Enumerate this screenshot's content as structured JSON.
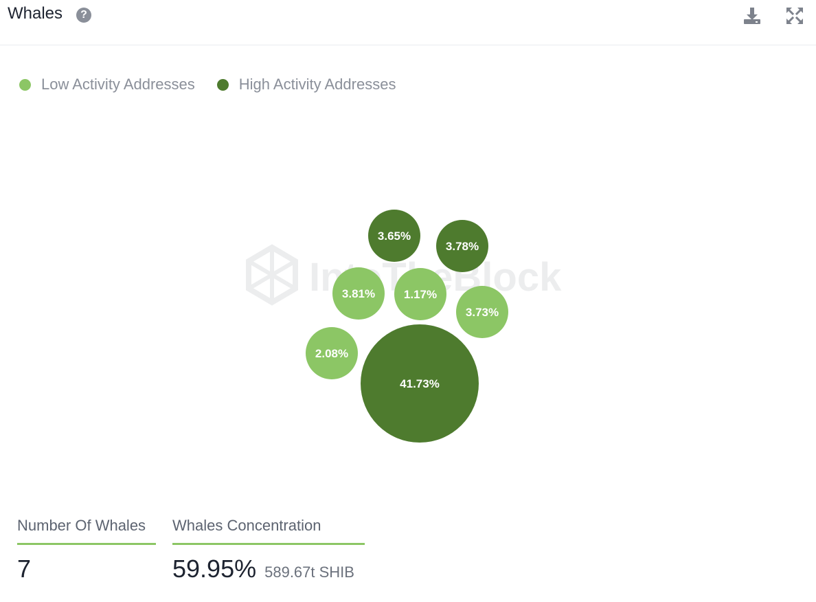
{
  "header": {
    "title": "Whales",
    "help_icon": "question-circle-icon",
    "download_icon": "download-icon",
    "expand_icon": "expand-icon"
  },
  "colors": {
    "low_activity": "#8cc665",
    "high_activity": "#4e7b2e"
  },
  "legend": [
    {
      "label": "Low Activity Addresses",
      "color": "#8cc665"
    },
    {
      "label": "High Activity Addresses",
      "color": "#4e7b2e"
    }
  ],
  "chart_data": {
    "type": "bubble",
    "title": "",
    "series": [
      {
        "name": "Low Activity Addresses",
        "values": [
          3.81,
          1.17,
          3.73,
          2.08
        ]
      },
      {
        "name": "High Activity Addresses",
        "values": [
          3.65,
          3.78,
          41.73
        ]
      }
    ],
    "labels": [
      "3.81%",
      "1.17%",
      "3.73%",
      "2.08%",
      "3.65%",
      "3.78%",
      "41.73%"
    ]
  },
  "stats": {
    "number_of_whales_label": "Number Of Whales",
    "number_of_whales_value": "7",
    "concentration_label": "Whales Concentration",
    "concentration_value": "59.95%",
    "concentration_amount": "589.67t SHIB"
  }
}
